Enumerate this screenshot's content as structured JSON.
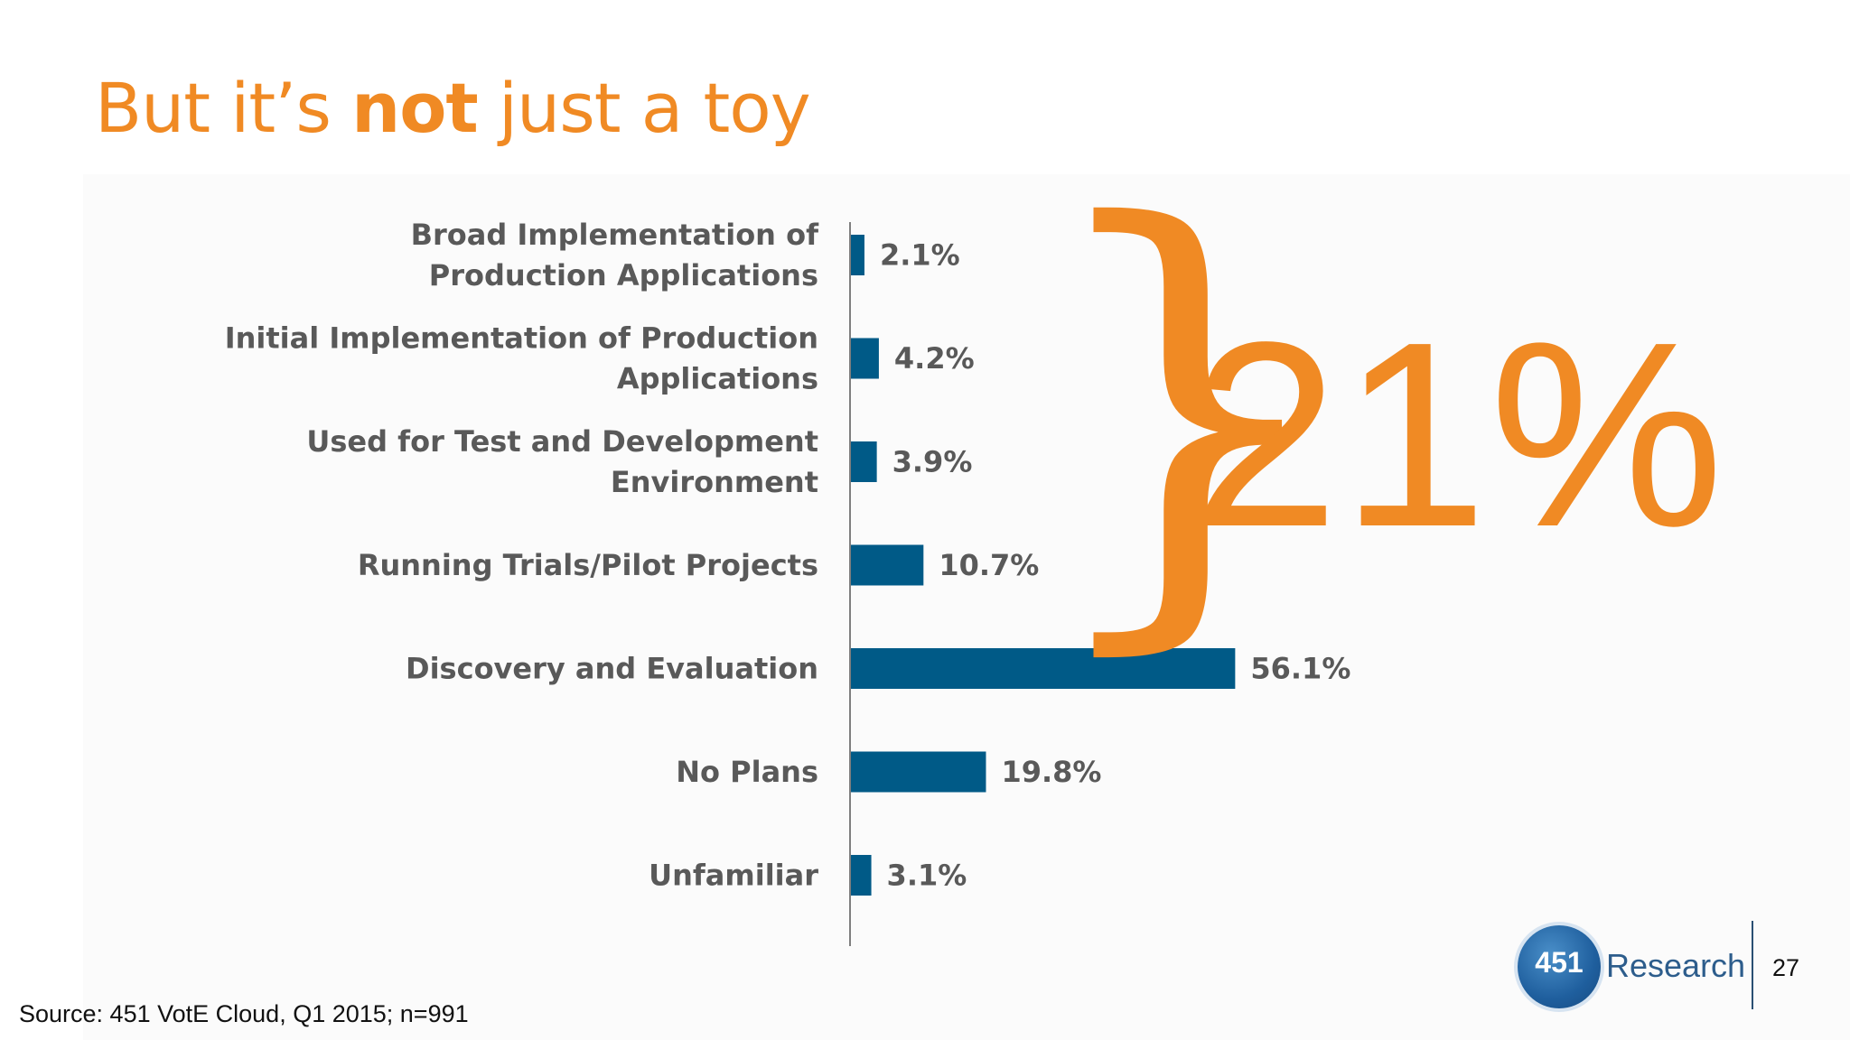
{
  "slide": {
    "title_prefix": "But it’s ",
    "title_emphasis": "not",
    "title_suffix": " just a toy",
    "callout": "21%",
    "source": "Source: 451 VotE Cloud, Q1 2015; n=991",
    "page_number": "27",
    "logo_number": "451",
    "logo_word": "Research"
  },
  "colors": {
    "accent": "#f08a24",
    "bar": "#005a87",
    "text": "#595959",
    "axis": "#7f7f7f"
  },
  "chart_data": {
    "type": "bar",
    "orientation": "horizontal",
    "categories": [
      [
        "Broad Implementation of",
        "Production Applications"
      ],
      [
        "Initial Implementation of Production",
        "Applications"
      ],
      [
        "Used for Test and Development",
        "Environment"
      ],
      [
        "Running Trials/Pilot Projects"
      ],
      [
        "Discovery and Evaluation"
      ],
      [
        "No Plans"
      ],
      [
        "Unfamiliar"
      ]
    ],
    "values": [
      2.1,
      4.2,
      3.9,
      10.7,
      56.1,
      19.8,
      3.1
    ],
    "value_labels": [
      "2.1%",
      "4.2%",
      "3.9%",
      "10.7%",
      "56.1%",
      "19.8%",
      "3.1%"
    ],
    "xlim": [
      0,
      100
    ],
    "grid": false,
    "legend": "none",
    "annotation": {
      "type": "brace",
      "spans_categories": [
        0,
        3
      ],
      "text": "21%"
    }
  }
}
